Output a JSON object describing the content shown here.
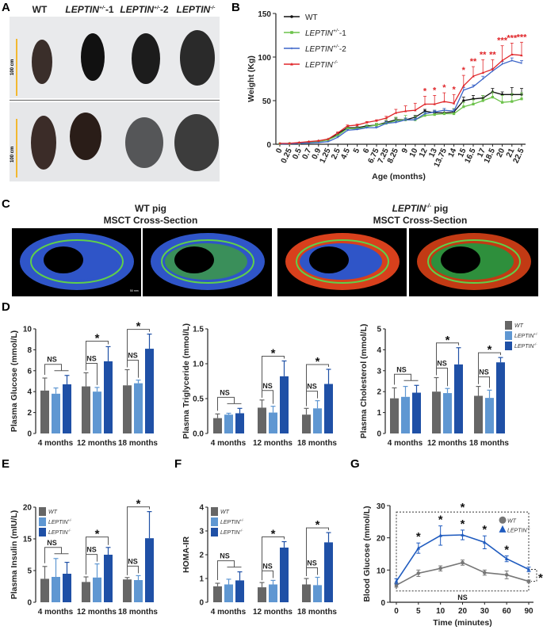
{
  "panel_letters": {
    "a": "A",
    "b": "B",
    "c": "C",
    "d": "D",
    "e": "E",
    "f": "F",
    "g": "G"
  },
  "panel_a": {
    "columns": [
      {
        "name": "WT",
        "sup": "",
        "suffix": ""
      },
      {
        "name": "LEPTIN",
        "sup": "+/-",
        "suffix": "-1"
      },
      {
        "name": "LEPTIN",
        "sup": "+/-",
        "suffix": "-2"
      },
      {
        "name": "LEPTIN",
        "sup": "-/-",
        "suffix": ""
      }
    ],
    "scale_label_top": "100 cm",
    "scale_label_bottom": "100 cm",
    "scale_bar_color": "#f2b830"
  },
  "panel_c": {
    "left_title_line1": {
      "name": "WT",
      "sup": "",
      "suffix": " pig"
    },
    "left_title_line2": "MSCT Cross-Section",
    "right_title_line1": {
      "name": "LEPTIN",
      "sup": "-/-",
      "suffix": " pig"
    },
    "right_title_line2": "MSCT Cross-Section",
    "scale_text": "50 mm"
  },
  "colors": {
    "wt": "#666666",
    "het": "#5f97d2",
    "ko": "#1f50a6"
  },
  "bar_legend": [
    {
      "name": "WT",
      "sup": ""
    },
    {
      "name": "LEPTIN",
      "sup": "+/-"
    },
    {
      "name": "LEPTIN",
      "sup": "-/-"
    }
  ],
  "chart_data": [
    {
      "id": "B",
      "type": "line",
      "ylabel": "Weight (Kg)",
      "xlabel": "Age (months)",
      "ylim": [
        0,
        150
      ],
      "yticks": [
        0,
        50,
        100,
        150
      ],
      "ytick_labels": [
        "0",
        "50",
        "100",
        "150"
      ],
      "x": [
        "0",
        "0.25",
        "0.5",
        "0.7",
        "0.9",
        "1.25",
        "2.5",
        "4.5",
        "5",
        "6",
        "6.75",
        "7.25",
        "8.25",
        "9",
        "10",
        "12",
        "13",
        "13.75",
        "14",
        "15",
        "16.5",
        "17",
        "18.5",
        "20",
        "21",
        "22.5"
      ],
      "series": [
        {
          "name": "WT",
          "sup": "",
          "suffix": "",
          "color": "#111111",
          "marker": "circle",
          "values": [
            0.5,
            0.8,
            1.5,
            2.5,
            3.5,
            5.5,
            12,
            19,
            19,
            21,
            22,
            25,
            28,
            28,
            31,
            38,
            36,
            36,
            37,
            50,
            52,
            53,
            60,
            57,
            57,
            57
          ],
          "errors": [
            0,
            0,
            0,
            0,
            0,
            0,
            1,
            1,
            1,
            1,
            1,
            2,
            2,
            2,
            2,
            2,
            2,
            3,
            3,
            4,
            4,
            3,
            4,
            3,
            8,
            7
          ]
        },
        {
          "name": "LEPTIN",
          "sup": "+/-",
          "suffix": "-1",
          "color": "#6cc24a",
          "marker": "square",
          "values": [
            0.5,
            0.7,
            1.2,
            2,
            3,
            5,
            10,
            18,
            18,
            20,
            22,
            24,
            27,
            28,
            28,
            33,
            34,
            35,
            35,
            43,
            46,
            50,
            54,
            48,
            49,
            52
          ],
          "errors": [
            0,
            0,
            0,
            0,
            0,
            0,
            1,
            1,
            1,
            2,
            2,
            5,
            4,
            5,
            4,
            3,
            5,
            6,
            6,
            5,
            5,
            6,
            6,
            8,
            9,
            7
          ]
        },
        {
          "name": "LEPTIN",
          "sup": "+/-",
          "suffix": "-2",
          "color": "#3b64c8",
          "marker": "star",
          "values": [
            0.3,
            0.5,
            1,
            1.5,
            2,
            3,
            8,
            16,
            17,
            19,
            19,
            24,
            25,
            28,
            28,
            35,
            37,
            39,
            38,
            62,
            66,
            75,
            84,
            92,
            96,
            93
          ],
          "errors": [
            0,
            0,
            0,
            0,
            0,
            0,
            1,
            1,
            1,
            1,
            1,
            2,
            2,
            2,
            2,
            2,
            2,
            2,
            2,
            3,
            2,
            3,
            3,
            3,
            3,
            3
          ]
        },
        {
          "name": "LEPTIN",
          "sup": "-/-",
          "suffix": "",
          "color": "#e0262a",
          "marker": "triangle",
          "values": [
            1,
            1,
            2,
            3,
            4,
            6,
            13,
            21,
            22,
            25,
            27,
            30,
            36,
            38,
            39,
            46,
            46,
            49,
            47,
            67,
            78,
            82,
            86,
            96,
            103,
            102
          ],
          "errors": [
            0,
            0,
            0,
            0,
            0,
            0,
            1,
            1,
            1,
            1,
            1,
            2,
            4,
            6,
            8,
            9,
            10,
            10,
            10,
            12,
            11,
            15,
            11,
            17,
            13,
            15
          ]
        }
      ],
      "significance": [
        {
          "x": "12",
          "label": "*"
        },
        {
          "x": "13",
          "label": "*"
        },
        {
          "x": "13.75",
          "label": "*"
        },
        {
          "x": "14",
          "label": "*"
        },
        {
          "x": "15",
          "label": "*"
        },
        {
          "x": "16.5",
          "label": "**"
        },
        {
          "x": "17",
          "label": "**"
        },
        {
          "x": "18.5",
          "label": "**"
        },
        {
          "x": "20",
          "label": "***"
        },
        {
          "x": "21",
          "label": "***"
        },
        {
          "x": "22.5",
          "label": "***"
        }
      ],
      "significance_color": "#e0262a",
      "legend": "top-left"
    },
    {
      "id": "D1",
      "type": "bar",
      "ylabel": "Plasma Glucose (mmol/L)",
      "yticks": [
        0,
        2,
        4,
        6,
        8,
        10
      ],
      "ytick_labels": [
        "0",
        "2",
        "4",
        "6",
        "8",
        "10"
      ],
      "categories": [
        "4 months",
        "12 months",
        "18 months"
      ],
      "series_keys": [
        "wt",
        "het",
        "ko"
      ],
      "values": [
        [
          4.1,
          3.8,
          4.7
        ],
        [
          4.5,
          4.0,
          6.9
        ],
        [
          4.6,
          4.8,
          8.1
        ]
      ],
      "errors": [
        [
          1.2,
          0.55,
          0.85
        ],
        [
          1.3,
          0.4,
          1.4
        ],
        [
          1.5,
          0.3,
          1.4
        ]
      ],
      "comparisons": [
        [
          {
            "to": "both",
            "label": "NS"
          }
        ],
        [
          {
            "to": "het",
            "label": "NS"
          },
          {
            "to": "ko",
            "label": "*"
          }
        ],
        [
          {
            "to": "het",
            "label": "NS"
          },
          {
            "to": "ko",
            "label": "*"
          }
        ]
      ]
    },
    {
      "id": "D2",
      "type": "bar",
      "ylabel": "Plasma Triglyceride (mmol/L)",
      "yticks": [
        0,
        0.5,
        1.0,
        1.5
      ],
      "ytick_labels": [
        "0.0",
        "0.5",
        "1.0",
        "1.5"
      ],
      "categories": [
        "4 months",
        "12 months",
        "18 months"
      ],
      "values": [
        [
          0.22,
          0.27,
          0.29
        ],
        [
          0.37,
          0.3,
          0.82
        ],
        [
          0.27,
          0.36,
          0.71
        ]
      ],
      "errors": [
        [
          0.06,
          0.02,
          0.07
        ],
        [
          0.11,
          0.09,
          0.22
        ],
        [
          0.09,
          0.11,
          0.21
        ]
      ],
      "comparisons": [
        [
          {
            "to": "both",
            "label": "NS"
          }
        ],
        [
          {
            "to": "het",
            "label": "NS"
          },
          {
            "to": "ko",
            "label": "*"
          }
        ],
        [
          {
            "to": "het",
            "label": "NS"
          },
          {
            "to": "ko",
            "label": "*"
          }
        ]
      ]
    },
    {
      "id": "D3",
      "type": "bar",
      "ylabel": "Plasma  Cholesterol (mmol/L)",
      "yticks": [
        0,
        1,
        2,
        3,
        4,
        5
      ],
      "ytick_labels": [
        "0",
        "1",
        "2",
        "3",
        "4",
        "5"
      ],
      "categories": [
        "4 months",
        "12 months",
        "18 months"
      ],
      "values": [
        [
          1.68,
          1.75,
          1.95
        ],
        [
          2.0,
          1.93,
          3.3
        ],
        [
          1.8,
          1.7,
          3.4
        ]
      ],
      "errors": [
        [
          0.5,
          0.5,
          0.35
        ],
        [
          0.67,
          0.22,
          0.8
        ],
        [
          0.45,
          0.37,
          0.23
        ]
      ],
      "comparisons": [
        [
          {
            "to": "both",
            "label": "NS"
          }
        ],
        [
          {
            "to": "het",
            "label": "NS"
          },
          {
            "to": "ko",
            "label": "*"
          }
        ],
        [
          {
            "to": "het",
            "label": "NS"
          },
          {
            "to": "ko",
            "label": "*"
          }
        ]
      ],
      "legend": "top-right"
    },
    {
      "id": "E",
      "type": "bar",
      "ylabel": "Plasma  Insulin (mIU/L)",
      "yticks": [
        0,
        5,
        15,
        20
      ],
      "ytick_labels": [
        "0",
        "5",
        "15",
        "20"
      ],
      "categories": [
        "4 months",
        "12 months",
        "18 months"
      ],
      "values": [
        [
          3.7,
          4.0,
          4.5
        ],
        [
          3.2,
          3.9,
          10.0
        ],
        [
          3.6,
          3.5,
          15.1
        ]
      ],
      "errors": [
        [
          2.6,
          4.8,
          3.1
        ],
        [
          0.8,
          3.2,
          2.3
        ],
        [
          0.3,
          0.7,
          4.2
        ]
      ],
      "comparisons": [
        [
          {
            "to": "both",
            "label": "NS"
          }
        ],
        [
          {
            "to": "het",
            "label": "NS"
          },
          {
            "to": "ko",
            "label": "*"
          }
        ],
        [
          {
            "to": "het",
            "label": "NS"
          },
          {
            "to": "ko",
            "label": "*"
          }
        ]
      ],
      "legend": "top-left"
    },
    {
      "id": "F",
      "type": "bar",
      "ylabel": "HOMA-IR",
      "yticks": [
        0,
        1,
        2,
        3,
        4
      ],
      "ytick_labels": [
        "0",
        "1",
        "2",
        "3",
        "4"
      ],
      "categories": [
        "4 months",
        "12 months",
        "18 months"
      ],
      "values": [
        [
          0.67,
          0.75,
          0.92
        ],
        [
          0.63,
          0.75,
          2.3
        ],
        [
          0.75,
          0.72,
          2.52
        ]
      ],
      "errors": [
        [
          0.13,
          0.22,
          0.36
        ],
        [
          0.2,
          0.17,
          0.25
        ],
        [
          0.25,
          0.33,
          0.41
        ]
      ],
      "comparisons": [
        [
          {
            "to": "both",
            "label": "NS"
          }
        ],
        [
          {
            "to": "het",
            "label": "NS"
          },
          {
            "to": "ko",
            "label": "*"
          }
        ],
        [
          {
            "to": "het",
            "label": "NS"
          },
          {
            "to": "ko",
            "label": "*"
          }
        ]
      ],
      "legend": "top-left"
    },
    {
      "id": "G",
      "type": "line",
      "ylabel": "Blood Glucose (mmol/L)",
      "xlabel": "Time (minutes)",
      "ylim": [
        0,
        30
      ],
      "yticks": [
        0,
        10,
        20,
        30
      ],
      "ytick_labels": [
        "0",
        "10",
        "20",
        "30"
      ],
      "x": [
        "0",
        "5",
        "10",
        "20",
        "30",
        "60",
        "90"
      ],
      "series": [
        {
          "name": "WT",
          "sup": "",
          "color": "#777777",
          "marker": "circle",
          "values": [
            5.3,
            9.0,
            10.5,
            12.3,
            9.2,
            8.5,
            6.5
          ],
          "errors": [
            0.6,
            1.0,
            0.8,
            0.8,
            0.8,
            1.2,
            0.4
          ]
        },
        {
          "name": "LEPTIN",
          "sup": "-/-",
          "color": "#1f5bbf",
          "marker": "triangle",
          "values": [
            6.5,
            16.8,
            20.7,
            20.9,
            18.6,
            13.5,
            10.2
          ],
          "errors": [
            0.8,
            1.6,
            3.0,
            1.5,
            2.0,
            0.9,
            0.7
          ]
        }
      ],
      "point_significance": [
        {
          "x": "5",
          "label": "*"
        },
        {
          "x": "10",
          "label": "*"
        },
        {
          "x": "20",
          "label": "*"
        },
        {
          "x": "30",
          "label": "*"
        },
        {
          "x": "60",
          "label": "*"
        }
      ],
      "box_top_label": "*",
      "box_bottom_label": "NS",
      "end_label": "*",
      "legend": "top-right"
    }
  ]
}
